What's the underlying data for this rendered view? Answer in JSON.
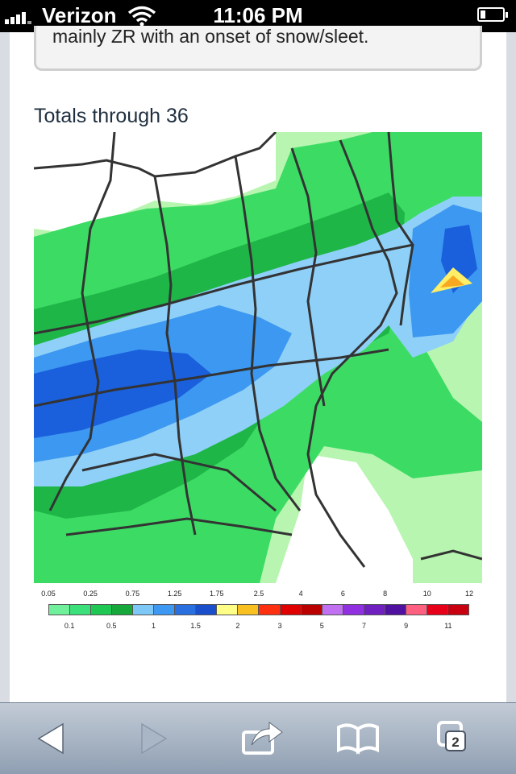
{
  "status_bar": {
    "carrier": "Verizon",
    "time": "11:06 PM",
    "signal_icon": "signal-bars-icon",
    "wifi_icon": "wifi-icon",
    "battery_icon": "battery-icon",
    "battery_level": 0.15
  },
  "content": {
    "quote_text": "mainly ZR with an onset of snow/sleet.",
    "section_title": "Totals through 36"
  },
  "legend": {
    "top_labels": [
      "0.05",
      "0.25",
      "0.75",
      "1.25",
      "1.75",
      "2.5",
      "4",
      "6",
      "8",
      "10",
      "12"
    ],
    "bottom_labels": [
      "0.1",
      "0.5",
      "1",
      "1.5",
      "2",
      "3",
      "5",
      "7",
      "9",
      "11"
    ],
    "colors": [
      "#70f09a",
      "#3ce07a",
      "#1fc852",
      "#16a83a",
      "#7ec8f8",
      "#3c98f0",
      "#2a6fe0",
      "#1a4fcc",
      "#ffff88",
      "#f8c020",
      "#ff3010",
      "#e00000",
      "#bb0000",
      "#c070f0",
      "#9030e0",
      "#7020c0",
      "#5010a0",
      "#ff6080",
      "#e8001a",
      "#c80010"
    ]
  },
  "toolbar": {
    "back_icon": "back-arrow-icon",
    "forward_icon": "forward-arrow-icon",
    "share_icon": "share-icon",
    "bookmarks_icon": "bookmarks-book-icon",
    "tabs_icon": "tabs-icon",
    "tab_count": "2"
  }
}
